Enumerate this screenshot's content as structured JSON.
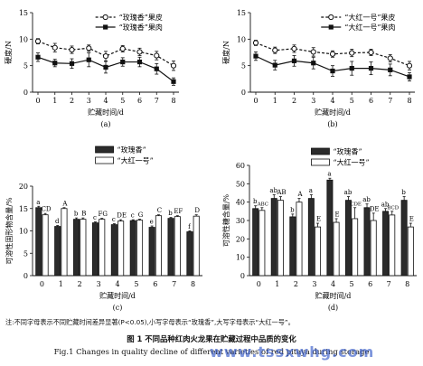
{
  "figure": {
    "note": "注:不同字母表示不同贮藏时间差异显著(P<0.05),小写字母表示“玫瑰香”,大写字母表示“大红一号”。",
    "caption_cn": "图 1   不同品种红肉火龙果在贮藏过程中品质的变化",
    "caption_en": "Fig.1   Changes in quality decline of different varieties of red pitaya during storage",
    "watermark": "www.tssxwhg.com"
  },
  "chart_data": [
    {
      "id": "a",
      "type": "line",
      "panel_label": "(a)",
      "xlabel": "贮藏时间/d",
      "ylabel": "硬度/N",
      "x": [
        0,
        1,
        2,
        3,
        4,
        5,
        6,
        7,
        8
      ],
      "xlim": [
        0,
        8
      ],
      "ylim": [
        0,
        15
      ],
      "yticks": [
        0,
        5,
        10,
        15
      ],
      "legend_position": "top-right",
      "series": [
        {
          "name": "“玫瑰香”果皮",
          "style": "dashed-open-circle",
          "values": [
            9.6,
            8.4,
            8.0,
            8.3,
            6.8,
            8.2,
            7.6,
            6.9,
            5.0
          ],
          "errors": [
            0.5,
            0.8,
            0.7,
            0.6,
            0.9,
            0.6,
            0.7,
            0.8,
            0.9
          ]
        },
        {
          "name": "“玫瑰香”果肉",
          "style": "solid-filled-square",
          "values": [
            6.6,
            5.5,
            5.4,
            6.1,
            4.7,
            5.7,
            5.7,
            4.4,
            2.0
          ],
          "errors": [
            0.8,
            0.7,
            0.9,
            1.3,
            1.1,
            0.8,
            0.9,
            1.0,
            0.7
          ]
        }
      ]
    },
    {
      "id": "b",
      "type": "line",
      "panel_label": "(b)",
      "xlabel": "贮藏时间/d",
      "ylabel": "硬度/N",
      "x": [
        0,
        1,
        2,
        3,
        4,
        5,
        6,
        7,
        8
      ],
      "xlim": [
        0,
        8
      ],
      "ylim": [
        0,
        15
      ],
      "yticks": [
        0,
        5,
        10,
        15
      ],
      "legend_position": "top-right",
      "series": [
        {
          "name": "“大红一号”果皮",
          "style": "dashed-open-circle",
          "values": [
            9.3,
            7.9,
            8.2,
            7.6,
            7.2,
            7.4,
            7.5,
            6.4,
            5.0
          ],
          "errors": [
            0.5,
            0.6,
            0.7,
            0.8,
            0.6,
            0.7,
            0.6,
            0.7,
            0.8
          ]
        },
        {
          "name": "“大红一号”果肉",
          "style": "solid-filled-square",
          "values": [
            6.8,
            5.1,
            5.9,
            5.5,
            4.0,
            4.5,
            4.5,
            4.2,
            2.9
          ],
          "errors": [
            0.8,
            0.9,
            1.0,
            1.1,
            1.0,
            1.3,
            1.2,
            1.1,
            0.8
          ]
        }
      ]
    },
    {
      "id": "c",
      "type": "bar",
      "panel_label": "(c)",
      "xlabel": "贮藏时间/d",
      "ylabel": "可溶性固形物含量/%",
      "categories": [
        "0",
        "1",
        "2",
        "3",
        "4",
        "5",
        "6",
        "7",
        "8"
      ],
      "ylim": [
        0,
        20
      ],
      "yticks": [
        0,
        5,
        10,
        15,
        20
      ],
      "legend_position": "top-right",
      "series": [
        {
          "name": "“玫瑰香”",
          "fill": "#2b2b2b",
          "values": [
            15.2,
            11.0,
            12.6,
            11.8,
            11.4,
            12.3,
            10.8,
            12.8,
            9.8
          ],
          "errors": [
            0.3,
            0.2,
            0.3,
            0.2,
            0.2,
            0.2,
            0.3,
            0.2,
            0.2
          ],
          "letters": [
            "a",
            "d",
            "b",
            "c",
            "c",
            "c",
            "e",
            "b",
            "f"
          ]
        },
        {
          "name": "“大红一号”",
          "fill": "#ffffff",
          "values": [
            13.6,
            15.0,
            12.6,
            12.6,
            12.2,
            12.4,
            13.4,
            13.2,
            13.3
          ],
          "errors": [
            0.3,
            0.2,
            0.3,
            0.2,
            0.3,
            0.2,
            0.2,
            0.2,
            0.3
          ],
          "letters": [
            "CD",
            "A",
            "B",
            "FG",
            "DE",
            "G",
            "C",
            "EF",
            "D"
          ]
        }
      ]
    },
    {
      "id": "d",
      "type": "bar",
      "panel_label": "(d)",
      "xlabel": "贮藏时间/d",
      "ylabel": "可溶性糖含量/%",
      "categories": [
        "0",
        "1",
        "2",
        "3",
        "4",
        "5",
        "6",
        "7",
        "8"
      ],
      "ylim": [
        0,
        60
      ],
      "yticks": [
        0,
        10,
        20,
        30,
        40,
        50,
        60
      ],
      "legend_position": "top-right",
      "series": [
        {
          "name": "“玫瑰香”",
          "fill": "#2b2b2b",
          "values": [
            36.5,
            42,
            32,
            42,
            52,
            41,
            37,
            35,
            41
          ],
          "errors": [
            1.5,
            2,
            1.5,
            2,
            1,
            2,
            2,
            1.5,
            2
          ],
          "letters": [
            "b",
            "ab",
            "b",
            "a",
            "a",
            "ab",
            "ab",
            "ab",
            "b"
          ]
        },
        {
          "name": "“大红一号”",
          "fill": "#ffffff",
          "values": [
            35.5,
            41,
            40,
            26.5,
            29,
            31,
            30,
            33,
            26.5
          ],
          "errors": [
            1.5,
            2,
            2,
            2,
            2,
            6,
            4,
            2,
            2
          ],
          "letters": [
            "ABC",
            "AB",
            "A",
            "E",
            "E",
            "CDE",
            "DE",
            "BCD",
            "E"
          ]
        }
      ]
    }
  ]
}
